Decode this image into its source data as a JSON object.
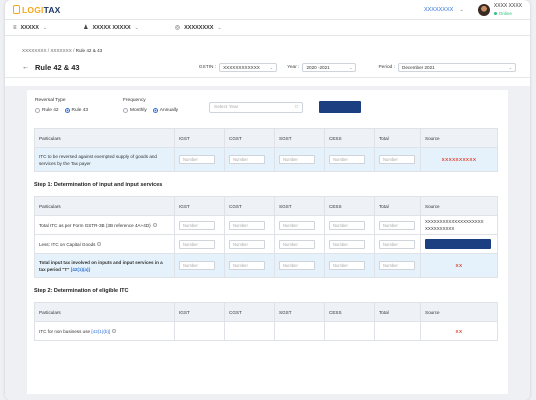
{
  "topbar": {
    "logo_left": "LOGI",
    "logo_right": "TAX",
    "org_select": "XXXXXXXX",
    "user_name": "XXXX XXXX",
    "user_status": "Online"
  },
  "subbar": {
    "item1": "XXXXX",
    "item2": "XXXXX XXXXX",
    "item3": "XXXXXXXX"
  },
  "breadcrumb": [
    "XXXXXXXX",
    "XXXXXXX",
    "Rule 42 & 43"
  ],
  "page": {
    "title": "Rule 42 & 43",
    "gstin_label": "GSTIN :",
    "gstin_value": "XXXXXXXXXXXX",
    "year_label": "Year :",
    "year_value": "2020 -2021",
    "period_label": "Period :",
    "period_value": "December 2021"
  },
  "controls": {
    "reversal_label": "Reversal Type",
    "reversal_options": [
      "Rule 42",
      "Rule 43"
    ],
    "reversal_selected": "Rule 43",
    "frequency_label": "Frequency",
    "frequency_options": [
      "Monthly",
      "Annually"
    ],
    "frequency_selected": "Annually",
    "year_placeholder": "Select Year"
  },
  "table_headers": [
    "Particulars",
    "IGST",
    "CGST",
    "SGST",
    "CESS",
    "Total",
    "Source"
  ],
  "input_placeholder": "Number",
  "table1": {
    "row1": {
      "particulars": "ITC to be reversed against exempted supply of goods and services by the Tax payer",
      "source": "XXXXXXXXXX"
    }
  },
  "step1": {
    "title": "Step 1: Determination of input and input services",
    "rows": [
      {
        "particulars": "Total ITC as per Form GSTR-3B (3B reference 4A+4D)",
        "source": "XXXXXXXXXXXXXXXXXXXX XXXXXXXXXX"
      },
      {
        "particulars": "Less: ITC on Capital Goods",
        "source": ""
      },
      {
        "particulars": "Total input tax involved on inputs and input services in a tax period \"T\"",
        "link": "[42(1)(a)]",
        "source": "XX"
      }
    ]
  },
  "step2": {
    "title": "Step 2: Determination of eligible ITC",
    "rows": [
      {
        "particulars": "ITC for non business use",
        "link": "[42(1)(b)]",
        "source": "XX"
      }
    ]
  },
  "colors": {
    "navy": "#1c3f82",
    "accent_red": "#e03b2a",
    "highlight": "#e5f2fb",
    "link": "#2f6fd8"
  }
}
